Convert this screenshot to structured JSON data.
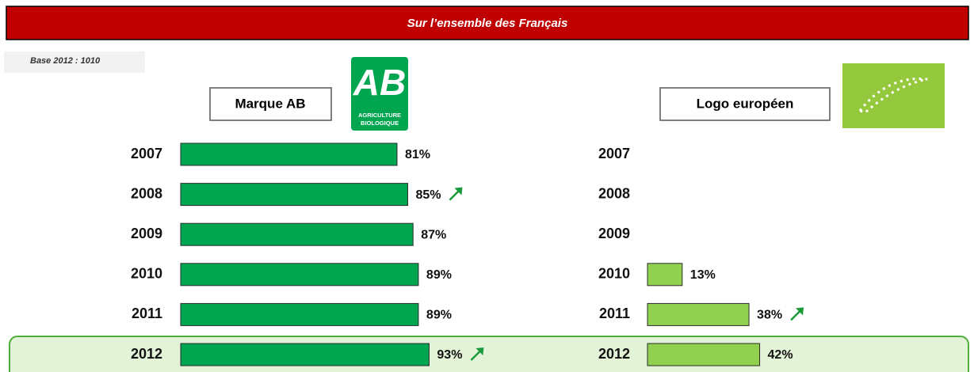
{
  "banner": "Sur l’ensemble des Français",
  "base_note": "Base 2012 : 1010",
  "logo_ab": {
    "text": "AB",
    "lines": [
      "AGRICULTURE",
      "BIOLOGIQUE"
    ]
  },
  "chart_data": [
    {
      "type": "bar",
      "orientation": "horizontal",
      "title": "Marque AB",
      "categories": [
        "2007",
        "2008",
        "2009",
        "2010",
        "2011",
        "2012"
      ],
      "values": [
        81,
        85,
        87,
        89,
        89,
        93
      ],
      "value_labels": [
        "81%",
        "85%",
        "87%",
        "89%",
        "89%",
        "93%"
      ],
      "significant_increase": [
        false,
        true,
        false,
        false,
        false,
        true
      ],
      "color": "#00a550",
      "xlim": [
        0,
        100
      ]
    },
    {
      "type": "bar",
      "orientation": "horizontal",
      "title": "Logo européen",
      "categories": [
        "2007",
        "2008",
        "2009",
        "2010",
        "2011",
        "2012"
      ],
      "values": [
        null,
        null,
        null,
        13,
        38,
        42
      ],
      "value_labels": [
        null,
        null,
        null,
        "13%",
        "38%",
        "42%"
      ],
      "significant_increase": [
        false,
        false,
        false,
        false,
        true,
        false
      ],
      "color": "#92d050",
      "xlim": [
        0,
        100
      ]
    }
  ]
}
